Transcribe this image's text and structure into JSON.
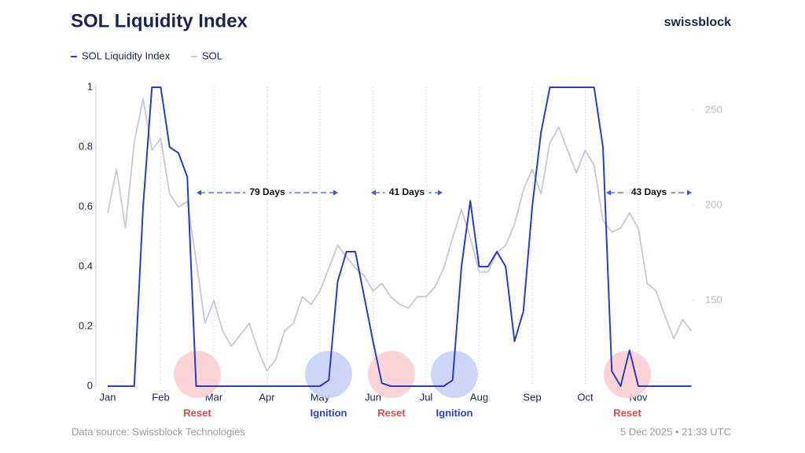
{
  "chart_data": {
    "type": "line",
    "title": "SOL Liquidity Index",
    "brand": "swissblock",
    "source": "Data source: Swissblock Technologies",
    "timestamp": "5 Dec 2025 • 21:33 UTC",
    "categories": [
      "Jan",
      null,
      null,
      null,
      null,
      null,
      "Feb",
      null,
      null,
      null,
      null,
      null,
      "Mar",
      null,
      null,
      null,
      null,
      null,
      "Apr",
      null,
      null,
      null,
      null,
      null,
      "May",
      null,
      null,
      null,
      null,
      null,
      "Jun",
      null,
      null,
      null,
      null,
      null,
      "Jul",
      null,
      null,
      null,
      null,
      null,
      "Aug",
      null,
      null,
      null,
      null,
      null,
      "Sep",
      null,
      null,
      null,
      null,
      null,
      "Oct",
      null,
      null,
      null,
      null,
      null,
      "Nov",
      null,
      null,
      null,
      null,
      null,
      null
    ],
    "series": [
      {
        "name": "SOL Liquidity Index",
        "color": "#2e3bc4",
        "values": [
          0,
          0,
          0,
          0,
          0.6,
          1,
          1,
          0.8,
          0.78,
          0.7,
          0,
          0,
          0,
          0,
          0,
          0,
          0,
          0,
          0,
          0,
          0,
          0,
          0,
          0,
          0,
          0.02,
          0.35,
          0.45,
          0.45,
          0.3,
          0.15,
          0.01,
          0,
          0,
          0,
          0,
          0,
          0,
          0,
          0.02,
          0.4,
          0.62,
          0.4,
          0.4,
          0.45,
          0.4,
          0.15,
          0.25,
          0.6,
          0.85,
          1,
          1,
          1,
          1,
          1,
          1,
          0.8,
          0.05,
          0,
          0.12,
          0,
          0,
          0,
          0,
          0,
          0,
          0
        ]
      },
      {
        "name": "SOL",
        "color": "#c5c8d8",
        "axis": "y2",
        "values": [
          196,
          219,
          188,
          233,
          256,
          229,
          235,
          206,
          199,
          202,
          171,
          138,
          150,
          134,
          126,
          132,
          138,
          124,
          113,
          119,
          134,
          138,
          152,
          148,
          155,
          167,
          179,
          173,
          167,
          163,
          155,
          159,
          152,
          148,
          146,
          152,
          152,
          157,
          167,
          183,
          198,
          183,
          165,
          165,
          175,
          179,
          190,
          208,
          219,
          206,
          233,
          241,
          229,
          217,
          229,
          221,
          192,
          186,
          188,
          196,
          188,
          159,
          155,
          142,
          130,
          140,
          134
        ]
      }
    ],
    "ylim": [
      0,
      1
    ],
    "yticks": [
      0,
      0.2,
      0.4,
      0.6,
      0.8,
      1
    ],
    "y2lim": [
      105,
      262
    ],
    "y2ticks": [
      150,
      200,
      250
    ],
    "grid": "x",
    "annotations": [
      "79 Days",
      "41 Days",
      "43 Days"
    ],
    "markers": [
      "Reset",
      "Ignition",
      "Reset",
      "Ignition",
      "Reset"
    ]
  }
}
